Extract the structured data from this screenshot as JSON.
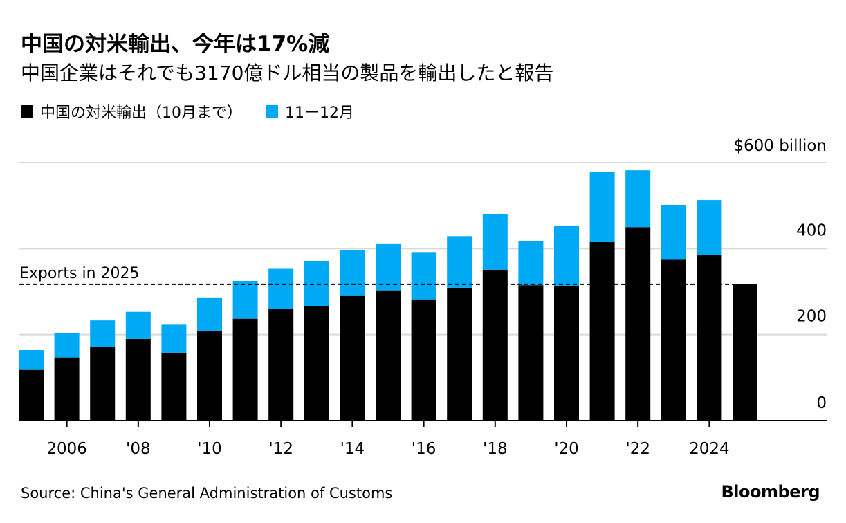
{
  "title": "中国の対米輸出、今年は17%減",
  "subtitle": "中国企業はそれでも3170億ドル相当の製品を輸出したと報告",
  "legend": [
    {
      "label": "中国の対米輸出（10月まで）",
      "color": "#000000"
    },
    {
      "label": "11－12月",
      "color": "#00a9f4"
    }
  ],
  "source": "Source: China's General Administration of Customs",
  "brand": "Bloomberg",
  "chart_data": {
    "type": "bar",
    "stacked": true,
    "categories": [
      "2005",
      "2006",
      "2007",
      "2008",
      "2009",
      "2010",
      "2011",
      "2012",
      "2013",
      "2014",
      "2015",
      "2016",
      "2017",
      "2018",
      "2019",
      "2020",
      "2021",
      "2022",
      "2023",
      "2024",
      "2025"
    ],
    "series": [
      {
        "name": "中国の対米輸出（10月まで）",
        "color": "#000000",
        "values": [
          118,
          147,
          171,
          190,
          158,
          208,
          237,
          259,
          267,
          290,
          303,
          282,
          309,
          351,
          315,
          313,
          415,
          450,
          374,
          386,
          317
        ]
      },
      {
        "name": "11－12月",
        "color": "#00a9f4",
        "values": [
          46,
          57,
          62,
          63,
          65,
          77,
          88,
          94,
          103,
          107,
          109,
          110,
          120,
          129,
          103,
          139,
          163,
          132,
          127,
          127,
          0
        ]
      }
    ],
    "reference_line": {
      "label": "Exports in 2025",
      "value": 317,
      "style": "dashed"
    },
    "ylim": [
      0,
      600
    ],
    "yticks": [
      {
        "value": 0,
        "label": "0"
      },
      {
        "value": 200,
        "label": "200"
      },
      {
        "value": 400,
        "label": "400"
      },
      {
        "value": 600,
        "label": "$600 billion"
      }
    ],
    "xtick_labels": [
      {
        "category": "2006",
        "label": "2006"
      },
      {
        "category": "2008",
        "label": "'08"
      },
      {
        "category": "2010",
        "label": "'10"
      },
      {
        "category": "2012",
        "label": "'12"
      },
      {
        "category": "2014",
        "label": "'14"
      },
      {
        "category": "2016",
        "label": "'16"
      },
      {
        "category": "2018",
        "label": "'18"
      },
      {
        "category": "2020",
        "label": "'20"
      },
      {
        "category": "2022",
        "label": "'22"
      },
      {
        "category": "2024",
        "label": "2024"
      }
    ],
    "grid": true,
    "y_axis_position": "right"
  }
}
